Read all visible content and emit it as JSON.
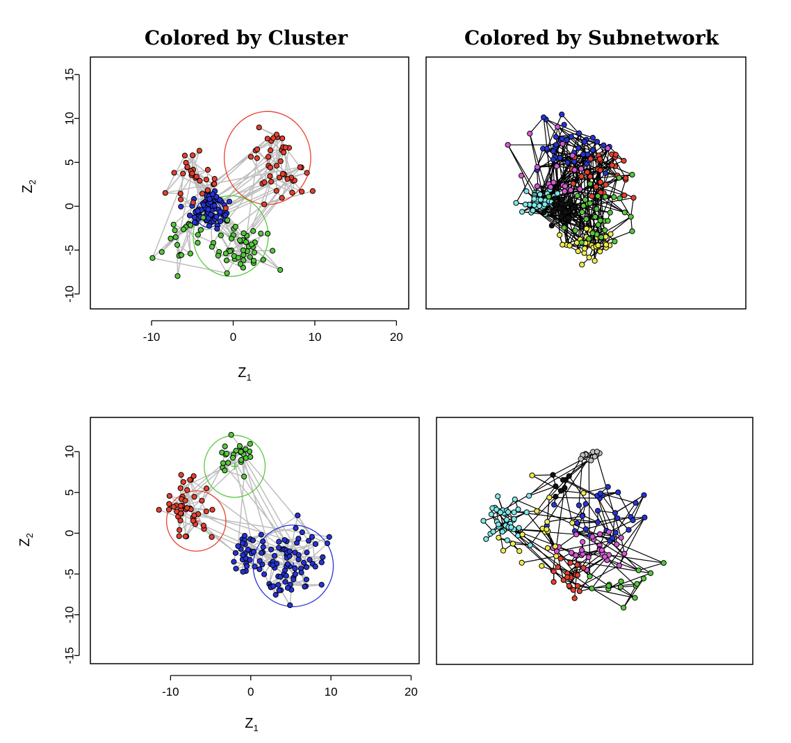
{
  "colors": {
    "red": "#e8402e",
    "green": "#55c93c",
    "blue": "#2533d9",
    "cyan": "#7fe8e8",
    "magenta": "#d957d9",
    "yellow": "#f0ec4a",
    "black": "#111111",
    "gray": "#c0c0c0",
    "edge_light": "#bdbdbd",
    "edge_dark": "#000000"
  },
  "titles": {
    "left": "Colored by Cluster",
    "right": "Colored by Subnetwork"
  },
  "chart_data": [
    {
      "id": "top-cluster",
      "type": "scatter",
      "title": "Colored by Cluster",
      "xlabel": "Z",
      "xlabel_sub": "1",
      "ylabel": "Z",
      "ylabel_sub": "2",
      "xlim": [
        -17.5,
        21.5
      ],
      "ylim": [
        -11.7,
        17
      ],
      "xticks": [
        -10,
        0,
        10,
        20
      ],
      "yticks": [
        -10,
        -5,
        0,
        5,
        10,
        15
      ],
      "xtick_labels": [
        "-10",
        "0",
        "10",
        "20"
      ],
      "ytick_labels": [
        "-10",
        "-5",
        "0",
        "5",
        "10",
        "15"
      ],
      "clusters": [
        {
          "color": "red",
          "center": [
            4.2,
            5.5
          ],
          "radius": 5.3
        },
        {
          "color": "green",
          "center": [
            -0.3,
            -3.4
          ],
          "radius": 4.6
        },
        {
          "color": "blue",
          "center": [
            -3.0,
            -0.8
          ],
          "radius": 1.6
        }
      ],
      "node_counts": {
        "red": 70,
        "green": 65,
        "blue": 90
      }
    },
    {
      "id": "top-subnetwork",
      "type": "scatter",
      "title": "Colored by Subnetwork",
      "node_counts": {
        "cyan": 45,
        "blue": 40,
        "red": 30,
        "yellow": 35,
        "green": 35,
        "magenta": 20,
        "black": 30
      }
    },
    {
      "id": "bottom-cluster",
      "type": "scatter",
      "title": "",
      "xlabel": "Z",
      "xlabel_sub": "1",
      "ylabel": "Z",
      "ylabel_sub": "2",
      "xlim": [
        -20,
        21
      ],
      "ylim": [
        -16,
        14.2
      ],
      "xticks": [
        -10,
        0,
        10,
        20
      ],
      "yticks": [
        -15,
        -10,
        -5,
        0,
        5,
        10
      ],
      "xtick_labels": [
        "-10",
        "0",
        "10",
        "20"
      ],
      "ytick_labels": [
        "-15",
        "-10",
        "-5",
        "0",
        "5",
        "10"
      ],
      "clusters": [
        {
          "color": "green",
          "center": [
            -2.0,
            8.2
          ],
          "radius": 3.8
        },
        {
          "color": "red",
          "center": [
            -6.8,
            1.5
          ],
          "radius": 3.7
        },
        {
          "color": "blue",
          "center": [
            5.3,
            -4.0
          ],
          "radius": 5.0
        }
      ],
      "node_counts": {
        "green": 25,
        "red": 45,
        "blue": 110
      }
    },
    {
      "id": "bottom-subnetwork",
      "type": "scatter",
      "title": "",
      "node_counts": {
        "cyan": 40,
        "blue": 30,
        "magenta": 30,
        "red": 20,
        "green": 15,
        "yellow": 20,
        "gray": 12,
        "black": 8
      }
    }
  ]
}
